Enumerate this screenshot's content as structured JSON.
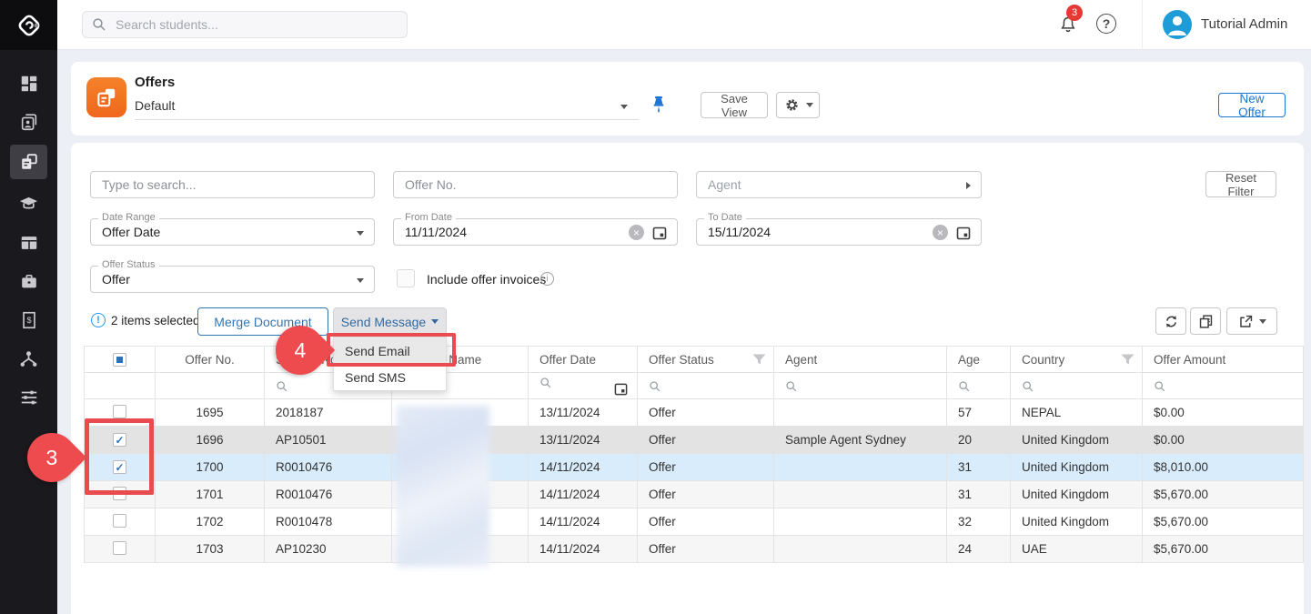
{
  "topbar": {
    "search_placeholder": "Search students...",
    "notification_badge": "3",
    "help_label": "?",
    "user_name": "Tutorial Admin"
  },
  "sidebar": {
    "icons": [
      "app-logo-icon",
      "dashboard-icon",
      "clients-icon",
      "offers-icon",
      "courses-icon",
      "applications-icon",
      "services-icon",
      "invoices-icon",
      "partners-icon",
      "workflow-settings-icon"
    ]
  },
  "header": {
    "title": "Offers",
    "view_selector_value": "Default",
    "save_view_label": "Save View",
    "new_offer_label": "New Offer"
  },
  "filters": {
    "keyword_placeholder": "Type to search...",
    "offer_no_placeholder": "Offer No.",
    "agent_placeholder": "Agent",
    "reset_label": "Reset Filter",
    "date_range": {
      "label": "Date Range",
      "value": "Offer Date"
    },
    "from_date": {
      "label": "From Date",
      "value": "11/11/2024"
    },
    "to_date": {
      "label": "To Date",
      "value": "15/11/2024"
    },
    "offer_status": {
      "label": "Offer Status",
      "value": "Offer"
    },
    "include_offer_invoices_label": "Include offer invoices"
  },
  "actions": {
    "selection_text": "2 items selected",
    "merge_document_label": "Merge Document",
    "send_message_label": "Send Message",
    "menu_items": [
      "Send Email",
      "Send SMS"
    ]
  },
  "table": {
    "columns": [
      {
        "label": "",
        "filter": false
      },
      {
        "label": "Offer No.",
        "filter": false
      },
      {
        "label": "Student No",
        "filter": false
      },
      {
        "label": "Student Name",
        "filter": false
      },
      {
        "label": "Offer Date",
        "filter": false
      },
      {
        "label": "Offer Status",
        "filter": true
      },
      {
        "label": "Agent",
        "filter": false
      },
      {
        "label": "Age",
        "filter": false
      },
      {
        "label": "Country",
        "filter": true
      },
      {
        "label": "Offer Amount",
        "filter": false
      }
    ],
    "rows": [
      {
        "checked": false,
        "state": "plain",
        "offer_no": "1695",
        "student_no": "2018187",
        "offer_date": "13/11/2024",
        "status": "Offer",
        "agent": "",
        "age": "57",
        "country": "NEPAL",
        "amount": "$0.00"
      },
      {
        "checked": true,
        "state": "selected",
        "offer_no": "1696",
        "student_no": "AP10501",
        "offer_date": "13/11/2024",
        "status": "Offer",
        "agent": "Sample Agent Sydney",
        "age": "20",
        "country": "United Kingdom",
        "amount": "$0.00"
      },
      {
        "checked": true,
        "state": "focused",
        "offer_no": "1700",
        "student_no": "R0010476",
        "offer_date": "14/11/2024",
        "status": "Offer",
        "agent": "",
        "age": "31",
        "country": "United Kingdom",
        "amount": "$8,010.00"
      },
      {
        "checked": false,
        "state": "stripe",
        "offer_no": "1701",
        "student_no": "R0010476",
        "offer_date": "14/11/2024",
        "status": "Offer",
        "agent": "",
        "age": "31",
        "country": "United Kingdom",
        "amount": "$5,670.00"
      },
      {
        "checked": false,
        "state": "plain",
        "offer_no": "1702",
        "student_no": "R0010478",
        "offer_date": "14/11/2024",
        "status": "Offer",
        "agent": "",
        "age": "32",
        "country": "United Kingdom",
        "amount": "$5,670.00"
      },
      {
        "checked": false,
        "state": "stripe",
        "offer_no": "1703",
        "student_no": "AP10230",
        "offer_date": "14/11/2024",
        "status": "Offer",
        "agent": "",
        "age": "24",
        "country": "UAE",
        "amount": "$5,670.00"
      }
    ]
  },
  "annotations": {
    "step_3": "3",
    "step_4": "4"
  },
  "colors": {
    "accent_blue": "#3276b1",
    "link_blue": "#3c7bbf",
    "annotation_red": "#ee4b4e",
    "selected_row": "#e3e3e4",
    "focused_row": "#d9ecfb",
    "avatar_blue": "#1e9cd7",
    "badge_red": "#e53935",
    "offers_orange": "#f4731f"
  }
}
